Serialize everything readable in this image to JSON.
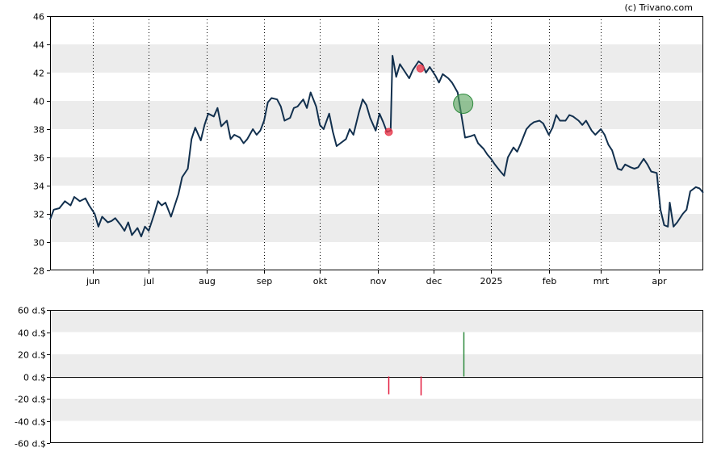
{
  "credit": "(c) Trivano.com",
  "colors": {
    "line": "#12304e",
    "band": "#ececec",
    "grid_dash": "#000000",
    "marker_sell": "#e8394c",
    "marker_buy": "#55a35a",
    "bar_sell": "#e31a3c",
    "bar_buy": "#2e8b3e"
  },
  "chart_data": [
    {
      "type": "line",
      "title": "",
      "xlabel": "",
      "ylabel": "",
      "ylim": [
        28,
        46
      ],
      "y_ticks": [
        28,
        30,
        32,
        34,
        36,
        38,
        40,
        42,
        44,
        46
      ],
      "y_tick_labels": [
        "28",
        "30",
        "32",
        "34",
        "36",
        "38",
        "40",
        "42",
        "44",
        "46"
      ],
      "x_range": [
        "2024-05-09",
        "2025-04-25"
      ],
      "x_ticks": [
        {
          "date": "2024-06-01",
          "label": "jun"
        },
        {
          "date": "2024-07-01",
          "label": "jul"
        },
        {
          "date": "2024-08-01",
          "label": "aug"
        },
        {
          "date": "2024-09-01",
          "label": "sep"
        },
        {
          "date": "2024-10-01",
          "label": "okt"
        },
        {
          "date": "2024-11-01",
          "label": "nov"
        },
        {
          "date": "2024-12-01",
          "label": "dec"
        },
        {
          "date": "2025-01-01",
          "label": "2025"
        },
        {
          "date": "2025-02-01",
          "label": "feb"
        },
        {
          "date": "2025-03-01",
          "label": "mrt"
        },
        {
          "date": "2025-04-01",
          "label": "apr"
        }
      ],
      "grid": "vertical dotted at month ticks, alternating horizontal bands",
      "series": [
        {
          "points": [
            [
              "2024-05-09",
              31.6
            ],
            [
              "2024-05-11",
              32.3
            ],
            [
              "2024-05-14",
              32.4
            ],
            [
              "2024-05-17",
              32.9
            ],
            [
              "2024-05-20",
              32.6
            ],
            [
              "2024-05-22",
              33.2
            ],
            [
              "2024-05-25",
              32.9
            ],
            [
              "2024-05-28",
              33.1
            ],
            [
              "2024-05-30",
              32.6
            ],
            [
              "2024-06-02",
              32.0
            ],
            [
              "2024-06-04",
              31.1
            ],
            [
              "2024-06-06",
              31.8
            ],
            [
              "2024-06-09",
              31.4
            ],
            [
              "2024-06-11",
              31.5
            ],
            [
              "2024-06-13",
              31.7
            ],
            [
              "2024-06-16",
              31.2
            ],
            [
              "2024-06-18",
              30.8
            ],
            [
              "2024-06-20",
              31.4
            ],
            [
              "2024-06-22",
              30.5
            ],
            [
              "2024-06-25",
              31.0
            ],
            [
              "2024-06-27",
              30.4
            ],
            [
              "2024-06-29",
              31.1
            ],
            [
              "2024-07-01",
              30.8
            ],
            [
              "2024-07-04",
              32.0
            ],
            [
              "2024-07-06",
              32.9
            ],
            [
              "2024-07-08",
              32.6
            ],
            [
              "2024-07-10",
              32.8
            ],
            [
              "2024-07-13",
              31.8
            ],
            [
              "2024-07-15",
              32.6
            ],
            [
              "2024-07-17",
              33.4
            ],
            [
              "2024-07-19",
              34.6
            ],
            [
              "2024-07-22",
              35.2
            ],
            [
              "2024-07-24",
              37.3
            ],
            [
              "2024-07-26",
              38.1
            ],
            [
              "2024-07-29",
              37.2
            ],
            [
              "2024-07-31",
              38.3
            ],
            [
              "2024-08-02",
              39.1
            ],
            [
              "2024-08-05",
              38.9
            ],
            [
              "2024-08-07",
              39.5
            ],
            [
              "2024-08-09",
              38.2
            ],
            [
              "2024-08-12",
              38.6
            ],
            [
              "2024-08-14",
              37.3
            ],
            [
              "2024-08-16",
              37.6
            ],
            [
              "2024-08-19",
              37.4
            ],
            [
              "2024-08-21",
              37.0
            ],
            [
              "2024-08-23",
              37.3
            ],
            [
              "2024-08-26",
              38.0
            ],
            [
              "2024-08-28",
              37.6
            ],
            [
              "2024-08-30",
              37.9
            ],
            [
              "2024-09-01",
              38.6
            ],
            [
              "2024-09-03",
              39.9
            ],
            [
              "2024-09-05",
              40.2
            ],
            [
              "2024-09-08",
              40.1
            ],
            [
              "2024-09-10",
              39.6
            ],
            [
              "2024-09-12",
              38.6
            ],
            [
              "2024-09-15",
              38.8
            ],
            [
              "2024-09-17",
              39.5
            ],
            [
              "2024-09-19",
              39.6
            ],
            [
              "2024-09-22",
              40.1
            ],
            [
              "2024-09-24",
              39.5
            ],
            [
              "2024-09-26",
              40.6
            ],
            [
              "2024-09-29",
              39.6
            ],
            [
              "2024-10-01",
              38.3
            ],
            [
              "2024-10-03",
              38.0
            ],
            [
              "2024-10-06",
              39.1
            ],
            [
              "2024-10-08",
              37.8
            ],
            [
              "2024-10-10",
              36.8
            ],
            [
              "2024-10-12",
              37.0
            ],
            [
              "2024-10-15",
              37.3
            ],
            [
              "2024-10-17",
              38.0
            ],
            [
              "2024-10-19",
              37.6
            ],
            [
              "2024-10-22",
              39.2
            ],
            [
              "2024-10-24",
              40.1
            ],
            [
              "2024-10-26",
              39.7
            ],
            [
              "2024-10-28",
              38.8
            ],
            [
              "2024-10-31",
              37.9
            ],
            [
              "2024-11-02",
              39.1
            ],
            [
              "2024-11-04",
              38.5
            ],
            [
              "2024-11-06",
              37.8
            ],
            [
              "2024-11-08",
              37.9
            ],
            [
              "2024-11-09",
              43.2
            ],
            [
              "2024-11-11",
              41.7
            ],
            [
              "2024-11-13",
              42.6
            ],
            [
              "2024-11-16",
              42.0
            ],
            [
              "2024-11-18",
              41.6
            ],
            [
              "2024-11-20",
              42.2
            ],
            [
              "2024-11-23",
              42.8
            ],
            [
              "2024-11-25",
              42.6
            ],
            [
              "2024-11-27",
              42.0
            ],
            [
              "2024-11-29",
              42.4
            ],
            [
              "2024-12-02",
              41.8
            ],
            [
              "2024-12-04",
              41.3
            ],
            [
              "2024-12-06",
              41.9
            ],
            [
              "2024-12-09",
              41.6
            ],
            [
              "2024-12-11",
              41.3
            ],
            [
              "2024-12-14",
              40.6
            ],
            [
              "2024-12-16",
              39.0
            ],
            [
              "2024-12-18",
              37.4
            ],
            [
              "2024-12-21",
              37.5
            ],
            [
              "2024-12-23",
              37.6
            ],
            [
              "2024-12-25",
              37.0
            ],
            [
              "2024-12-28",
              36.6
            ],
            [
              "2024-12-30",
              36.2
            ],
            [
              "2025-01-01",
              35.9
            ],
            [
              "2025-01-03",
              35.5
            ],
            [
              "2025-01-06",
              35.0
            ],
            [
              "2025-01-08",
              34.7
            ],
            [
              "2025-01-10",
              36.0
            ],
            [
              "2025-01-13",
              36.7
            ],
            [
              "2025-01-15",
              36.4
            ],
            [
              "2025-01-17",
              37.0
            ],
            [
              "2025-01-20",
              38.0
            ],
            [
              "2025-01-22",
              38.3
            ],
            [
              "2025-01-24",
              38.5
            ],
            [
              "2025-01-27",
              38.6
            ],
            [
              "2025-01-29",
              38.4
            ],
            [
              "2025-02-01",
              37.6
            ],
            [
              "2025-02-03",
              38.1
            ],
            [
              "2025-02-05",
              39.0
            ],
            [
              "2025-02-07",
              38.6
            ],
            [
              "2025-02-10",
              38.6
            ],
            [
              "2025-02-12",
              39.0
            ],
            [
              "2025-02-14",
              38.9
            ],
            [
              "2025-02-17",
              38.6
            ],
            [
              "2025-02-19",
              38.3
            ],
            [
              "2025-02-21",
              38.6
            ],
            [
              "2025-02-24",
              37.9
            ],
            [
              "2025-02-26",
              37.6
            ],
            [
              "2025-03-01",
              38.0
            ],
            [
              "2025-03-03",
              37.6
            ],
            [
              "2025-03-05",
              36.9
            ],
            [
              "2025-03-07",
              36.5
            ],
            [
              "2025-03-10",
              35.2
            ],
            [
              "2025-03-12",
              35.1
            ],
            [
              "2025-03-14",
              35.5
            ],
            [
              "2025-03-17",
              35.3
            ],
            [
              "2025-03-19",
              35.2
            ],
            [
              "2025-03-21",
              35.3
            ],
            [
              "2025-03-24",
              35.9
            ],
            [
              "2025-03-26",
              35.5
            ],
            [
              "2025-03-28",
              35.0
            ],
            [
              "2025-03-31",
              34.9
            ],
            [
              "2025-04-02",
              32.3
            ],
            [
              "2025-04-04",
              31.2
            ],
            [
              "2025-04-06",
              31.1
            ],
            [
              "2025-04-07",
              32.8
            ],
            [
              "2025-04-09",
              31.1
            ],
            [
              "2025-04-11",
              31.4
            ],
            [
              "2025-04-14",
              32.0
            ],
            [
              "2025-04-16",
              32.3
            ],
            [
              "2025-04-18",
              33.6
            ],
            [
              "2025-04-21",
              33.9
            ],
            [
              "2025-04-23",
              33.8
            ],
            [
              "2025-04-25",
              33.5
            ]
          ]
        }
      ],
      "markers": [
        {
          "kind": "sell",
          "date": "2024-11-07",
          "value": 37.8
        },
        {
          "kind": "sell",
          "date": "2024-11-24",
          "value": 42.3
        },
        {
          "kind": "buy",
          "date": "2024-12-17",
          "value": 39.8
        }
      ]
    },
    {
      "type": "bar",
      "title": "",
      "xlabel": "",
      "ylabel": "",
      "ylim": [
        -60,
        60
      ],
      "y_ticks": [
        60,
        40,
        20,
        0,
        -20,
        -40,
        -60
      ],
      "y_tick_labels": [
        "60 d.$",
        "40 d.$",
        "20 d.$",
        "0 d.$",
        "-20 d.$",
        "-40 d.$",
        "-60 d.$"
      ],
      "x_range": [
        "2024-05-09",
        "2025-04-25"
      ],
      "bars": [
        {
          "date": "2024-11-07",
          "value": -16,
          "kind": "sell"
        },
        {
          "date": "2024-11-24",
          "value": -17,
          "kind": "sell"
        },
        {
          "date": "2024-12-17",
          "value": 40,
          "kind": "buy"
        }
      ]
    }
  ]
}
